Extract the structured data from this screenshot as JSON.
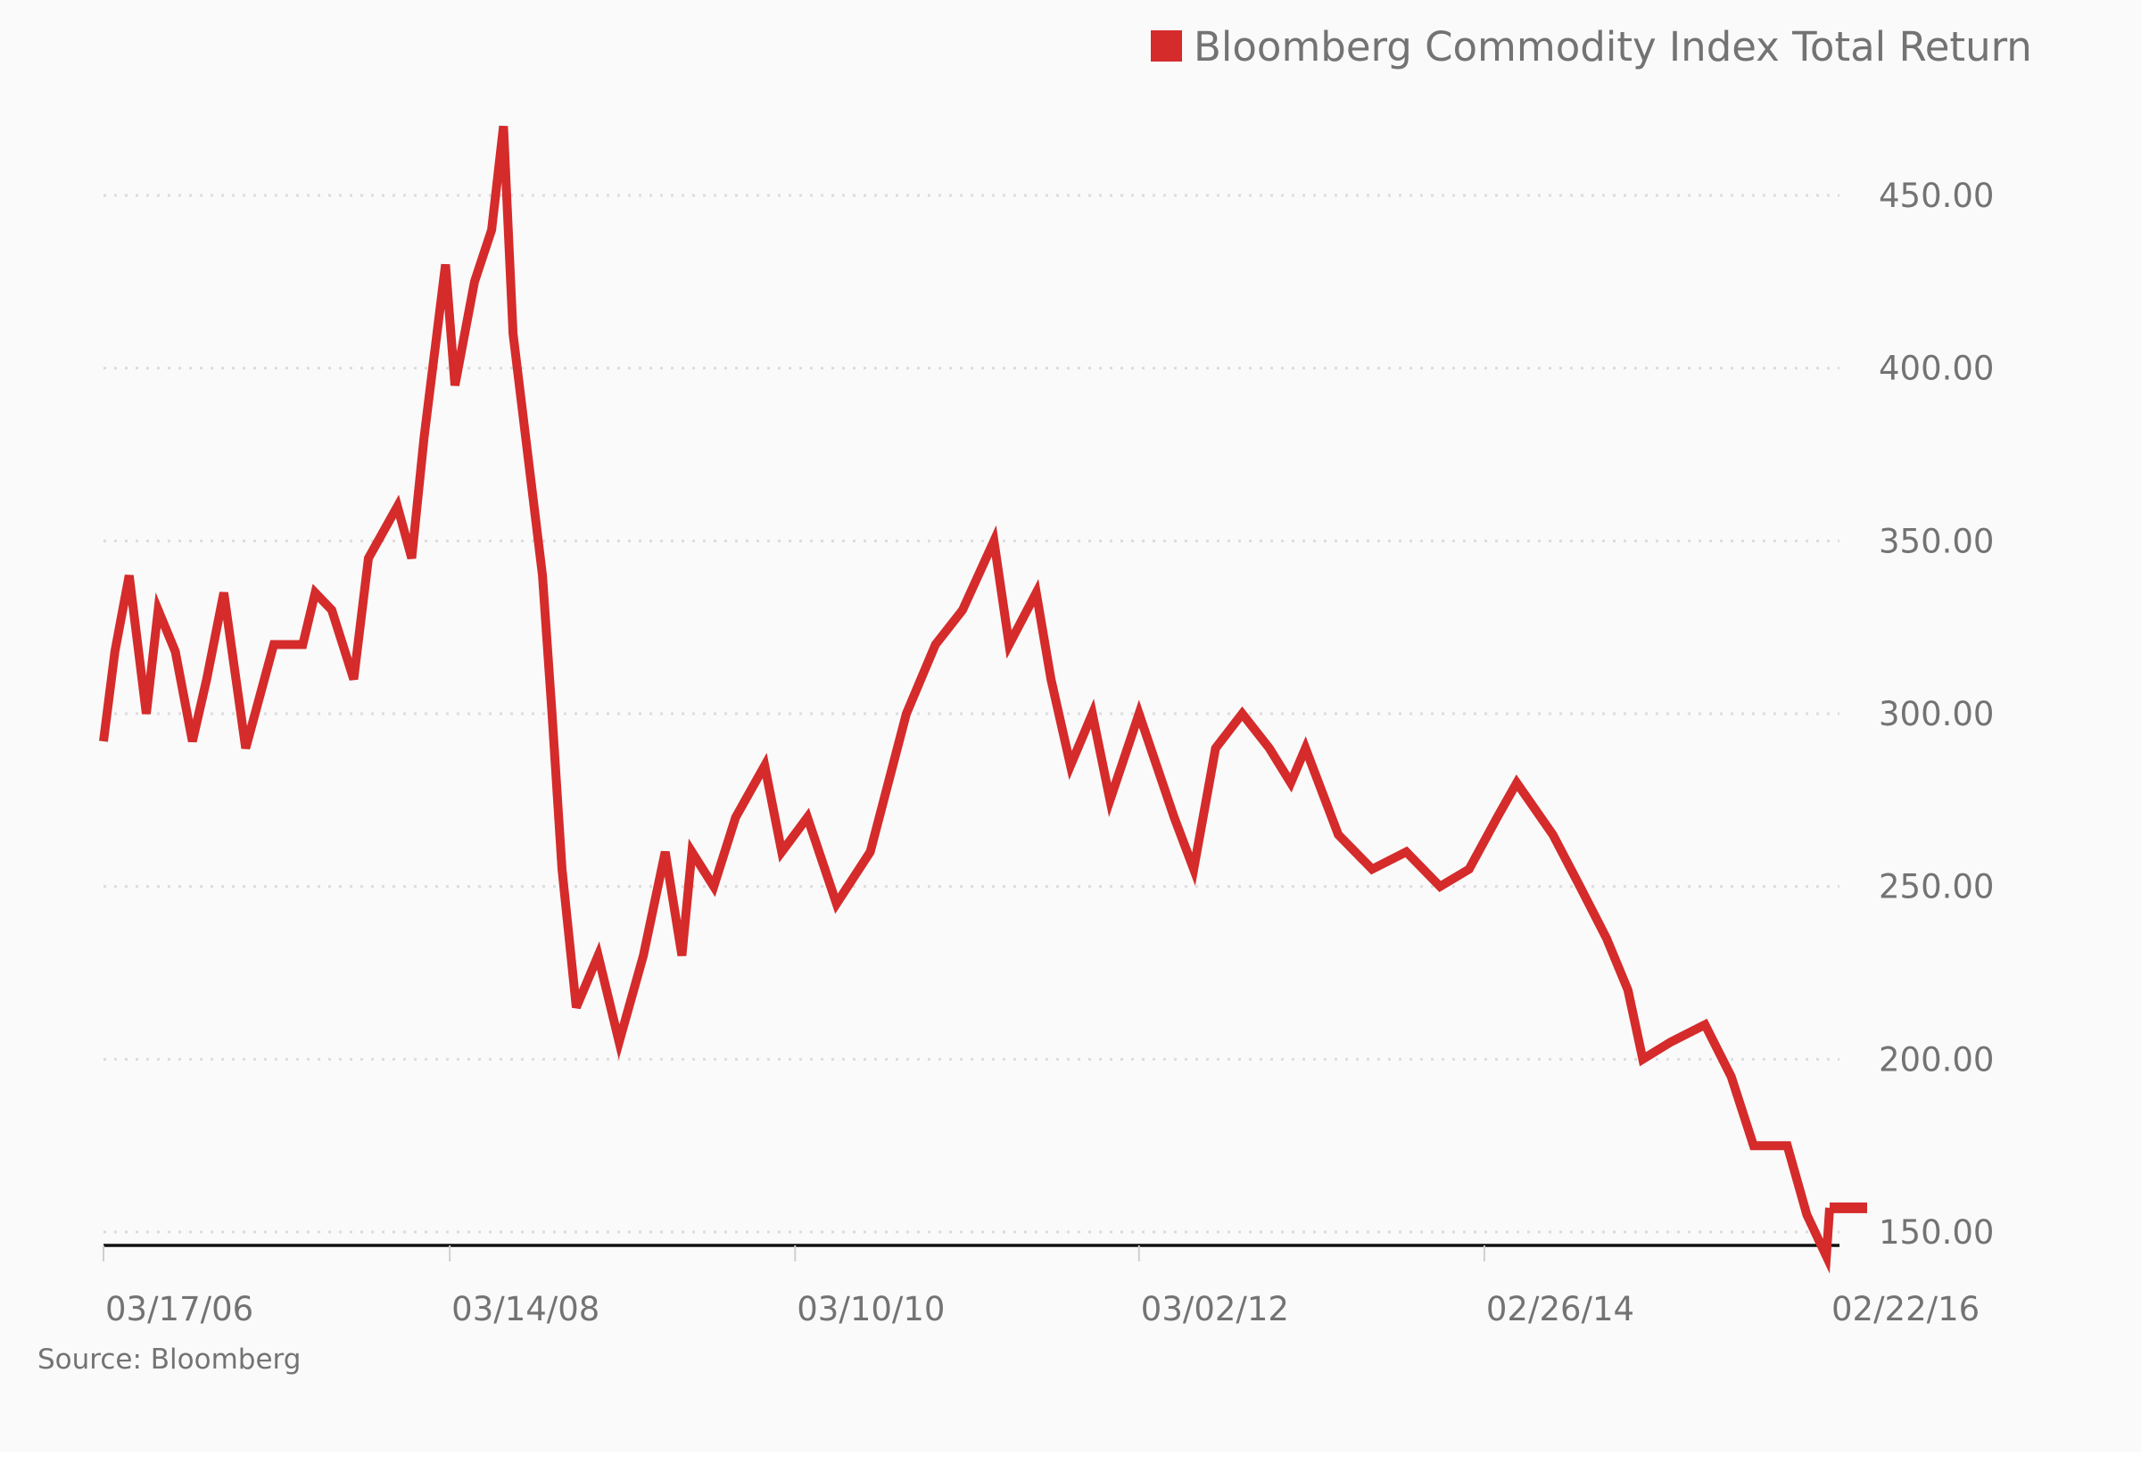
{
  "chart_data": {
    "type": "line",
    "title": "",
    "xlabel": "",
    "ylabel": "",
    "legend": {
      "position": "top-right",
      "entries": [
        "Bloomberg Commodity Index Total Return"
      ]
    },
    "grid": true,
    "series_color": "#d52b2b",
    "x_ticks": [
      "03/17/06",
      "03/14/08",
      "03/10/10",
      "03/02/12",
      "02/26/14",
      "02/22/16"
    ],
    "x_range": [
      "2006-03-17",
      "2016-02-22"
    ],
    "y_ticks": [
      "150.00",
      "200.00",
      "250.00",
      "300.00",
      "350.00",
      "400.00",
      "450.00"
    ],
    "ylim": [
      150,
      450
    ],
    "y_position": "right",
    "series": [
      {
        "name": "Bloomberg Commodity Index Total Return",
        "points": [
          [
            "2006-03-17",
            292
          ],
          [
            "2006-04-10",
            318
          ],
          [
            "2006-05-10",
            340
          ],
          [
            "2006-06-15",
            300
          ],
          [
            "2006-07-10",
            330
          ],
          [
            "2006-08-15",
            318
          ],
          [
            "2006-09-20",
            292
          ],
          [
            "2006-10-20",
            310
          ],
          [
            "2006-11-25",
            335
          ],
          [
            "2007-01-10",
            290
          ],
          [
            "2007-03-10",
            320
          ],
          [
            "2007-05-10",
            320
          ],
          [
            "2007-06-05",
            335
          ],
          [
            "2007-07-10",
            330
          ],
          [
            "2007-08-25",
            310
          ],
          [
            "2007-09-25",
            345
          ],
          [
            "2007-11-25",
            360
          ],
          [
            "2007-12-25",
            345
          ],
          [
            "2008-01-20",
            380
          ],
          [
            "2008-03-05",
            430
          ],
          [
            "2008-03-25",
            395
          ],
          [
            "2008-05-05",
            425
          ],
          [
            "2008-06-10",
            440
          ],
          [
            "2008-07-05",
            470
          ],
          [
            "2008-07-25",
            410
          ],
          [
            "2008-08-25",
            375
          ],
          [
            "2008-09-25",
            340
          ],
          [
            "2008-10-15",
            300
          ],
          [
            "2008-11-05",
            255
          ],
          [
            "2008-12-05",
            215
          ],
          [
            "2009-01-20",
            230
          ],
          [
            "2009-03-05",
            205
          ],
          [
            "2009-04-25",
            230
          ],
          [
            "2009-06-10",
            260
          ],
          [
            "2009-07-15",
            230
          ],
          [
            "2009-08-05",
            260
          ],
          [
            "2009-09-20",
            250
          ],
          [
            "2009-11-05",
            270
          ],
          [
            "2010-01-05",
            285
          ],
          [
            "2010-02-10",
            260
          ],
          [
            "2010-04-05",
            270
          ],
          [
            "2010-06-05",
            245
          ],
          [
            "2010-08-15",
            260
          ],
          [
            "2010-10-30",
            300
          ],
          [
            "2010-12-30",
            320
          ],
          [
            "2011-02-25",
            330
          ],
          [
            "2011-05-02",
            350
          ],
          [
            "2011-06-03",
            320
          ],
          [
            "2011-07-30",
            335
          ],
          [
            "2011-08-30",
            310
          ],
          [
            "2011-10-10",
            285
          ],
          [
            "2011-11-25",
            300
          ],
          [
            "2012-01-01",
            275
          ],
          [
            "2012-03-02",
            300
          ],
          [
            "2012-05-15",
            270
          ],
          [
            "2012-06-25",
            255
          ],
          [
            "2012-08-10",
            290
          ],
          [
            "2012-10-05",
            300
          ],
          [
            "2012-12-01",
            290
          ],
          [
            "2013-01-15",
            280
          ],
          [
            "2013-02-15",
            290
          ],
          [
            "2013-04-25",
            265
          ],
          [
            "2013-07-05",
            255
          ],
          [
            "2013-09-15",
            260
          ],
          [
            "2013-11-25",
            250
          ],
          [
            "2014-01-25",
            255
          ],
          [
            "2014-03-25",
            270
          ],
          [
            "2014-05-05",
            280
          ],
          [
            "2014-07-20",
            265
          ],
          [
            "2014-09-15",
            250
          ],
          [
            "2014-11-10",
            235
          ],
          [
            "2014-12-25",
            220
          ],
          [
            "2015-01-25",
            200
          ],
          [
            "2015-03-25",
            205
          ],
          [
            "2015-06-05",
            210
          ],
          [
            "2015-07-30",
            195
          ],
          [
            "2015-09-15",
            175
          ],
          [
            "2015-11-25",
            175
          ],
          [
            "2016-01-05",
            155
          ],
          [
            "2016-02-15",
            143
          ],
          [
            "2016-02-22",
            157
          ]
        ]
      }
    ],
    "source": "Source: Bloomberg"
  }
}
